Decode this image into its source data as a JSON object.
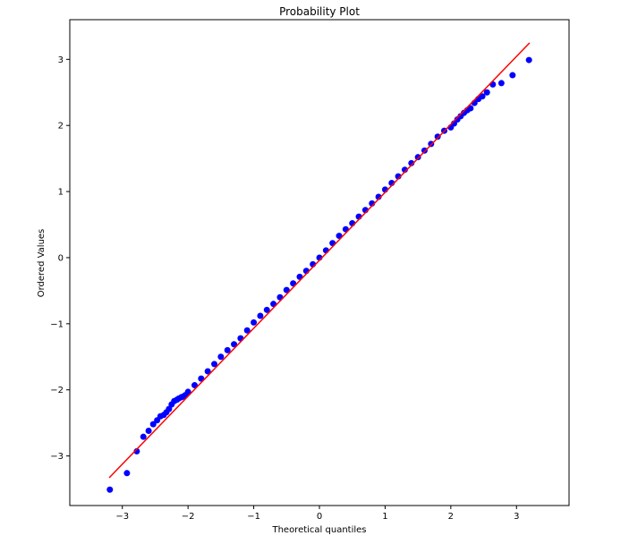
{
  "chart_data": {
    "type": "scatter",
    "title": "Probability Plot",
    "xlabel": "Theoretical quantiles",
    "ylabel": "Ordered Values",
    "xlim": [
      -3.8,
      3.8
    ],
    "ylim": [
      -3.75,
      3.6
    ],
    "xticks": [
      -3,
      -2,
      -1,
      0,
      1,
      2,
      3
    ],
    "xtick_labels": [
      "−3",
      "−2",
      "−1",
      "0",
      "1",
      "2",
      "3"
    ],
    "yticks": [
      -3,
      -2,
      -1,
      0,
      1,
      2,
      3
    ],
    "ytick_labels": [
      "−3",
      "−2",
      "−1",
      "0",
      "1",
      "2",
      "3"
    ],
    "grid": false,
    "series": [
      {
        "kind": "points",
        "color": "#0000ff",
        "x": [
          -3.19,
          -2.93,
          -2.78,
          -2.68,
          -2.6,
          -2.53,
          -2.47,
          -2.42,
          -2.37,
          -2.33,
          -2.29,
          -2.25,
          -2.21,
          -2.17,
          -2.14,
          -2.1,
          -2.07,
          -2.04,
          -2.0,
          -1.9,
          -1.8,
          -1.7,
          -1.6,
          -1.5,
          -1.4,
          -1.3,
          -1.2,
          -1.1,
          -1.0,
          -0.9,
          -0.8,
          -0.7,
          -0.6,
          -0.5,
          -0.4,
          -0.3,
          -0.2,
          -0.1,
          0.0,
          0.1,
          0.2,
          0.3,
          0.4,
          0.5,
          0.6,
          0.7,
          0.8,
          0.9,
          1.0,
          1.1,
          1.2,
          1.3,
          1.4,
          1.5,
          1.6,
          1.7,
          1.8,
          1.9,
          2.0,
          2.05,
          2.1,
          2.15,
          2.2,
          2.25,
          2.3,
          2.36,
          2.42,
          2.48,
          2.55,
          2.64,
          2.77,
          2.94,
          3.19
        ],
        "y": [
          -3.51,
          -3.26,
          -2.93,
          -2.71,
          -2.62,
          -2.52,
          -2.46,
          -2.4,
          -2.38,
          -2.34,
          -2.29,
          -2.22,
          -2.17,
          -2.15,
          -2.13,
          -2.11,
          -2.1,
          -2.08,
          -2.03,
          -1.93,
          -1.83,
          -1.72,
          -1.61,
          -1.5,
          -1.4,
          -1.31,
          -1.22,
          -1.1,
          -0.98,
          -0.88,
          -0.79,
          -0.7,
          -0.6,
          -0.49,
          -0.39,
          -0.29,
          -0.2,
          -0.1,
          0.0,
          0.11,
          0.22,
          0.33,
          0.43,
          0.52,
          0.62,
          0.72,
          0.82,
          0.92,
          1.03,
          1.13,
          1.23,
          1.33,
          1.43,
          1.52,
          1.62,
          1.72,
          1.83,
          1.92,
          1.97,
          2.03,
          2.09,
          2.14,
          2.19,
          2.23,
          2.26,
          2.34,
          2.4,
          2.44,
          2.5,
          2.62,
          2.64,
          2.76,
          2.99
        ]
      },
      {
        "kind": "fit-line",
        "color": "#ff0000",
        "x": [
          -3.2,
          3.2
        ],
        "y": [
          -3.33,
          3.25
        ]
      }
    ]
  }
}
